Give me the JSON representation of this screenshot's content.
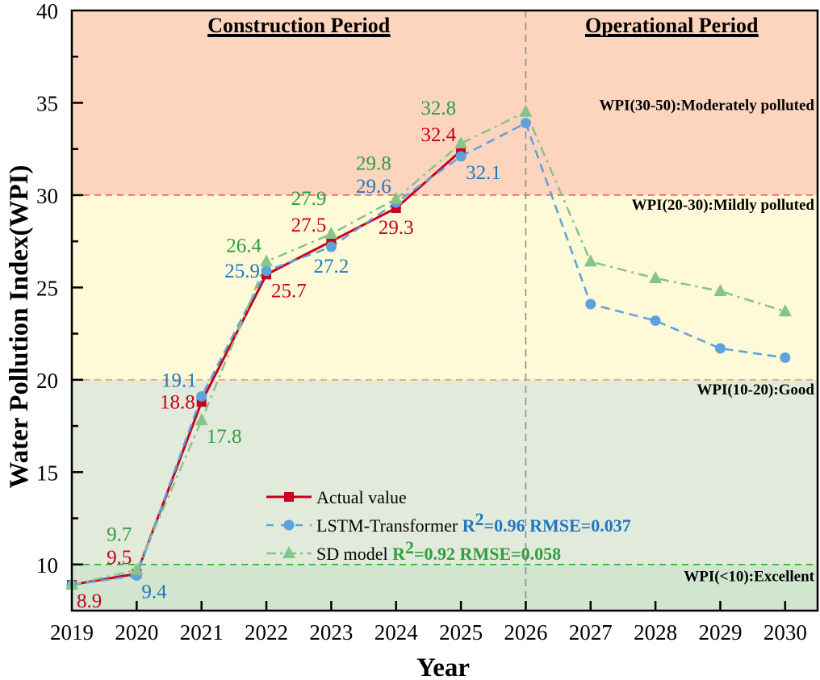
{
  "chart_data": {
    "type": "line",
    "title": "",
    "xlabel": "Year",
    "ylabel": "Water Pollution Index(WPI)",
    "x": [
      2019,
      2020,
      2021,
      2022,
      2023,
      2024,
      2025,
      2026,
      2027,
      2028,
      2029,
      2030
    ],
    "xlim": [
      2019,
      2030.5
    ],
    "ylim": [
      7.5,
      40
    ],
    "x_ticks": [
      "2019",
      "2020",
      "2021",
      "2022",
      "2023",
      "2024",
      "2025",
      "2026",
      "2027",
      "2028",
      "2029",
      "2030"
    ],
    "y_ticks": [
      10,
      15,
      20,
      25,
      30,
      35,
      40
    ],
    "grid": false,
    "period_divider_x": 2026,
    "period_titles": [
      {
        "label": "Construction Period",
        "x_center": 2022.5
      },
      {
        "label": "Operational Period",
        "x_center": 2028.25
      }
    ],
    "zones": [
      {
        "from": 30,
        "to": 40,
        "label": "WPI(30-50):Moderately polluted",
        "fill": "#fdd5be",
        "line_color": "#f2504a"
      },
      {
        "from": 20,
        "to": 30,
        "label": "WPI(20-30):Mildly polluted",
        "fill": "#fef9d6",
        "line_color": "#f39a4a"
      },
      {
        "from": 10,
        "to": 20,
        "label": "WPI(10-20):Good",
        "fill": "#e2eadb",
        "line_color": "#1faa1f"
      },
      {
        "from": 7.5,
        "to": 10,
        "label": "WPI(<10):Excellent",
        "fill": "#d2e5cf",
        "line_color": null
      }
    ],
    "series": [
      {
        "name": "Actual value",
        "color": "#c8001e",
        "label_color": "#c8001e",
        "marker": "square",
        "line_style": "solid",
        "values": [
          8.9,
          9.5,
          18.8,
          25.7,
          27.5,
          29.3,
          32.4,
          null,
          null,
          null,
          null,
          null
        ],
        "data_labels": [
          {
            "x": 2019,
            "text": "8.9",
            "pos": "below-right"
          },
          {
            "x": 2020,
            "text": "9.5",
            "pos": "above-left"
          },
          {
            "x": 2021,
            "text": "18.8",
            "pos": "left"
          },
          {
            "x": 2022,
            "text": "25.7",
            "pos": "below-right"
          },
          {
            "x": 2023,
            "text": "27.5",
            "pos": "above-left"
          },
          {
            "x": 2024,
            "text": "29.3",
            "pos": "below"
          },
          {
            "x": 2025,
            "text": "32.4",
            "pos": "above-left"
          }
        ]
      },
      {
        "name": "LSTM-Transformer",
        "stats": "R²=0.96 RMSE=0.037",
        "stat_r2": "R",
        "stat_sup": "2",
        "stat_rest": "=0.96 RMSE=0.037",
        "color": "#5ba3dc",
        "label_color": "#1f78c1",
        "marker": "circle",
        "line_style": "dashed",
        "values": [
          8.9,
          9.4,
          19.1,
          25.9,
          27.2,
          29.6,
          32.1,
          33.9,
          24.1,
          23.2,
          21.7,
          21.2
        ],
        "data_labels": [
          {
            "x": 2020,
            "text": "9.4",
            "pos": "below-right"
          },
          {
            "x": 2021,
            "text": "19.1",
            "pos": "above-left"
          },
          {
            "x": 2022,
            "text": "25.9",
            "pos": "left"
          },
          {
            "x": 2023,
            "text": "27.2",
            "pos": "below"
          },
          {
            "x": 2024,
            "text": "29.6",
            "pos": "above-left"
          },
          {
            "x": 2025,
            "text": "32.1",
            "pos": "below-right"
          }
        ]
      },
      {
        "name": "SD model",
        "stats": "R²=0.92 RMSE=0.058",
        "stat_r2": "R",
        "stat_sup": "2",
        "stat_rest": "=0.92 RMSE=0.058",
        "color": "#86c48a",
        "label_color": "#2e9e3e",
        "marker": "triangle",
        "line_style": "dash-dot",
        "values": [
          8.9,
          9.7,
          17.8,
          26.4,
          27.9,
          29.8,
          32.8,
          34.5,
          26.4,
          25.5,
          24.8,
          23.7
        ],
        "data_labels": [
          {
            "x": 2020,
            "text": "9.7",
            "pos": "above-left2"
          },
          {
            "x": 2021,
            "text": "17.8",
            "pos": "below-right"
          },
          {
            "x": 2022,
            "text": "26.4",
            "pos": "above-left"
          },
          {
            "x": 2023,
            "text": "27.9",
            "pos": "above-left2"
          },
          {
            "x": 2024,
            "text": "29.8",
            "pos": "above-left2"
          },
          {
            "x": 2025,
            "text": "32.8",
            "pos": "above-left2"
          }
        ]
      }
    ],
    "legend": {
      "placement": "lower-center"
    }
  }
}
